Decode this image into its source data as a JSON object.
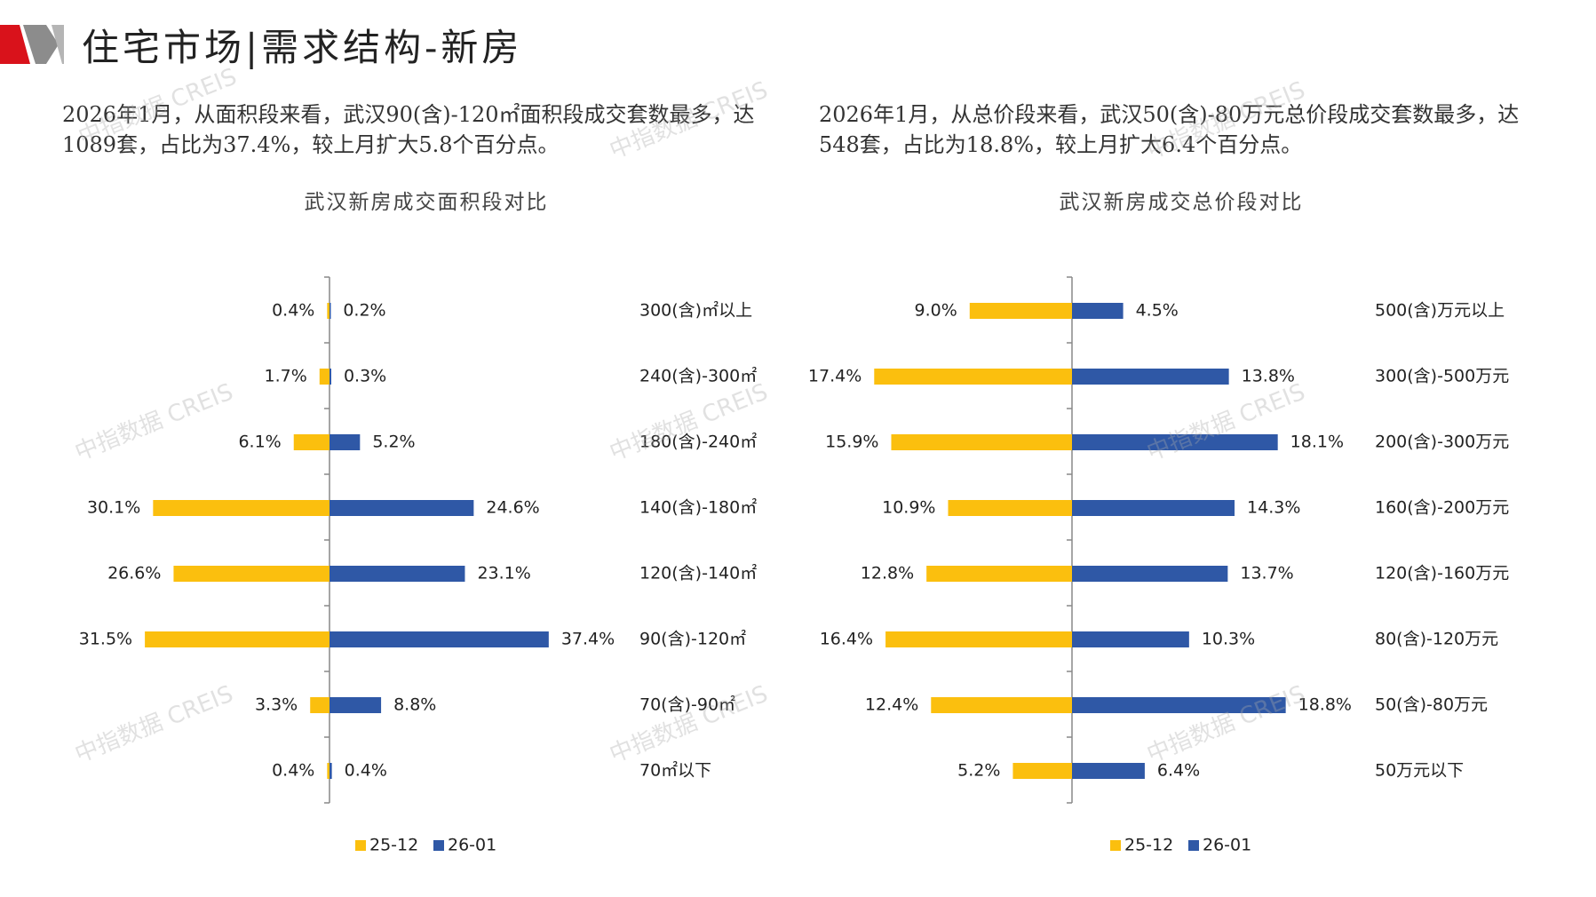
{
  "header": {
    "title": "住宅市场|需求结构-新房",
    "accent_red": "#d9121b",
    "accent_gray": "#8c8c8c"
  },
  "descriptions": {
    "left": "2026年1月，从面积段来看，武汉90(含)-120㎡面积段成交套数最多，达1089套，占比为37.4%，较上月扩大5.8个百分点。",
    "right": "2026年1月，从总价段来看，武汉50(含)-80万元总价段成交套数最多，达548套，占比为18.8%，较上月扩大6.4个百分点。"
  },
  "watermark": "中指数据 CREIS",
  "chart_data": [
    {
      "type": "bar",
      "orientation": "horizontal-butterfly",
      "title": "武汉新房成交面积段对比",
      "categories": [
        "300(含)㎡以上",
        "240(含)-300㎡",
        "180(含)-240㎡",
        "140(含)-180㎡",
        "120(含)-140㎡",
        "90(含)-120㎡",
        "70(含)-90㎡",
        "70㎡以下"
      ],
      "series": [
        {
          "name": "25-12",
          "color": "#fbbf0e",
          "values": [
            0.4,
            1.7,
            6.1,
            30.1,
            26.6,
            31.5,
            3.3,
            0.4
          ],
          "labels": [
            "0.4%",
            "1.7%",
            "6.1%",
            "30.1%",
            "26.6%",
            "31.5%",
            "3.3%",
            "0.4%"
          ]
        },
        {
          "name": "26-01",
          "color": "#2f58a6",
          "values": [
            0.2,
            0.3,
            5.2,
            24.6,
            23.1,
            37.4,
            8.8,
            0.4
          ],
          "labels": [
            "0.2%",
            "0.3%",
            "5.2%",
            "24.6%",
            "23.1%",
            "37.4%",
            "8.8%",
            "0.4%"
          ]
        }
      ],
      "unit": "%",
      "legend": "bottom-center"
    },
    {
      "type": "bar",
      "orientation": "horizontal-butterfly",
      "title": "武汉新房成交总价段对比",
      "categories": [
        "500(含)万元以上",
        "300(含)-500万元",
        "200(含)-300万元",
        "160(含)-200万元",
        "120(含)-160万元",
        "80(含)-120万元",
        "50(含)-80万元",
        "50万元以下"
      ],
      "series": [
        {
          "name": "25-12",
          "color": "#fbbf0e",
          "values": [
            9.0,
            17.4,
            15.9,
            10.9,
            12.8,
            16.4,
            12.4,
            5.2
          ],
          "labels": [
            "9.0%",
            "17.4%",
            "15.9%",
            "10.9%",
            "12.8%",
            "16.4%",
            "12.4%",
            "5.2%"
          ]
        },
        {
          "name": "26-01",
          "color": "#2f58a6",
          "values": [
            4.5,
            13.8,
            18.1,
            14.3,
            13.7,
            10.3,
            18.8,
            6.4
          ],
          "labels": [
            "4.5%",
            "13.8%",
            "18.1%",
            "14.3%",
            "13.7%",
            "10.3%",
            "18.8%",
            "6.4%"
          ]
        }
      ],
      "unit": "%",
      "legend": "bottom-center"
    }
  ]
}
